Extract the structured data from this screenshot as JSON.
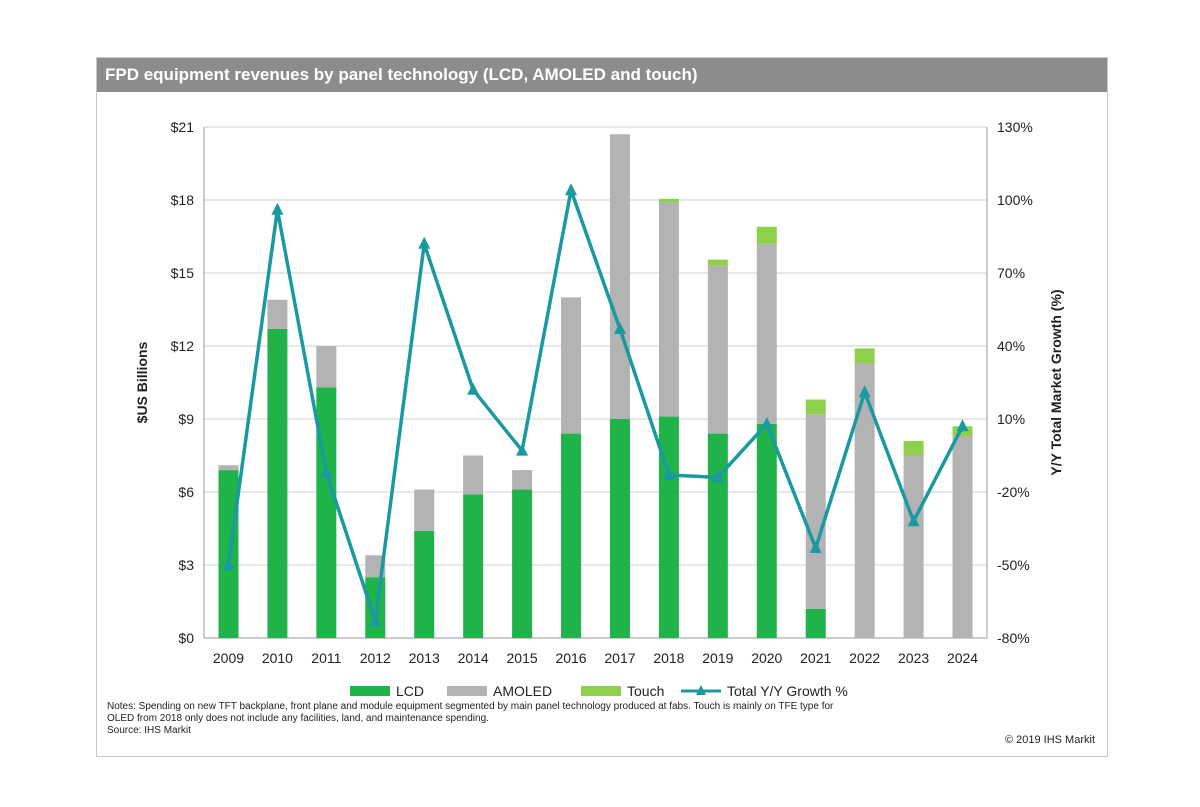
{
  "title": "FPD equipment revenues by panel technology (LCD, AMOLED and touch)",
  "chart_data": {
    "type": "bar",
    "stacked": true,
    "categories": [
      "2009",
      "2010",
      "2011",
      "2012",
      "2013",
      "2014",
      "2015",
      "2016",
      "2017",
      "2018",
      "2019",
      "2020",
      "2021",
      "2022",
      "2023",
      "2024"
    ],
    "series": [
      {
        "name": "LCD",
        "color": "#1fb34a",
        "axis": "left",
        "values": [
          6.9,
          12.7,
          10.3,
          2.5,
          4.4,
          5.9,
          6.1,
          8.4,
          9.0,
          9.1,
          8.4,
          8.8,
          1.2,
          0,
          0,
          0
        ]
      },
      {
        "name": "AMOLED",
        "color": "#b3b3b3",
        "axis": "left",
        "values": [
          0.2,
          1.2,
          1.7,
          0.9,
          1.7,
          1.6,
          0.8,
          5.6,
          11.7,
          8.8,
          6.9,
          7.4,
          8.0,
          11.3,
          7.5,
          8.3
        ]
      },
      {
        "name": "Touch",
        "color": "#8ed04b",
        "axis": "left",
        "values": [
          0,
          0,
          0,
          0,
          0,
          0,
          0,
          0,
          0,
          0.15,
          0.25,
          0.7,
          0.6,
          0.6,
          0.6,
          0.4
        ]
      },
      {
        "name": "Total Y/Y Growth %",
        "type": "line",
        "color": "#1a9aa0",
        "axis": "right",
        "values": [
          -50,
          96,
          -12,
          -73,
          82,
          22,
          -3,
          104,
          47,
          -13,
          -14,
          8,
          -43,
          21,
          -32,
          7
        ]
      }
    ],
    "ylabel": "$US Billions",
    "ylim": [
      0,
      21
    ],
    "yticks": [
      "$0",
      "$3",
      "$6",
      "$9",
      "$12",
      "$15",
      "$18",
      "$21"
    ],
    "y2label": "Y/Y Total Market Growth (%)",
    "y2lim": [
      -80,
      130
    ],
    "y2ticks": [
      "-80%",
      "-50%",
      "-20%",
      "10%",
      "40%",
      "70%",
      "100%",
      "130%"
    ],
    "grid": true,
    "legend": "bottom"
  },
  "notes": [
    "Notes: Spending on new TFT backplane, front plane and module equipment segmented by main panel technology produced at fabs. Touch is mainly on TFE type for",
    "OLED from 2018 only does not include any facilities, land, and maintenance spending.",
    "Source: IHS Markit"
  ],
  "copyright": "© 2019 IHS Markit"
}
